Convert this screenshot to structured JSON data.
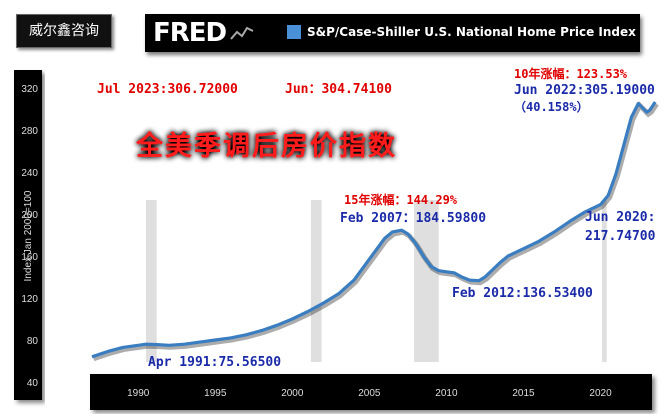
{
  "brand": {
    "name": "威尔鑫咨询"
  },
  "fred": {
    "logo": "FRED",
    "series_title": "S&P/Case-Shiller U.S. National Home Price Index"
  },
  "colors": {
    "line": "#3a7ec1",
    "annot_red": "#e00000",
    "annot_blue": "#1a2aa8",
    "recession": "#d9d9d9",
    "headline": "#ff1a1a"
  },
  "headline": "全美季调后房价指数",
  "annotations": {
    "top_latest": "Jul 2023:306.72000",
    "top_prev": "Jun：304.74100",
    "rise15": "15年涨幅：144.29%",
    "feb2007": "Feb 2007：184.59800",
    "rise10": "10年涨幅：123.53%",
    "jun2022": "Jun 2022:305.19000",
    "pct2022": "（40.158%）",
    "jun2020_a": "Jun 2020:",
    "jun2020_b": "217.74700",
    "feb2012": "Feb 2012:136.53400",
    "apr1991": "Apr 1991:75.56500"
  },
  "chart_data": {
    "type": "line",
    "ylabel": "Index Jan 2000=100",
    "xlabel": "",
    "ylim": [
      40,
      320
    ],
    "xlim": [
      1987.0,
      2023.6
    ],
    "y_ticks": [
      "40",
      "80",
      "120",
      "160",
      "200",
      "240",
      "280",
      "320"
    ],
    "x_ticks": [
      "1990",
      "1995",
      "2000",
      "2005",
      "2010",
      "2015",
      "2020"
    ],
    "recessions": [
      [
        1990.5,
        1991.2
      ],
      [
        2001.2,
        2001.9
      ],
      [
        2007.9,
        2009.5
      ],
      [
        2020.1,
        2020.4
      ]
    ],
    "series": [
      {
        "x": [
          1987.0,
          1988.0,
          1989.0,
          1990.0,
          1990.5,
          1991.25,
          1992.0,
          1993.0,
          1994.0,
          1995.0,
          1996.0,
          1997.0,
          1998.0,
          1999.0,
          2000.0,
          2001.0,
          2002.0,
          2003.0,
          2004.0,
          2005.0,
          2006.0,
          2006.5,
          2007.1,
          2007.5,
          2008.0,
          2008.5,
          2009.0,
          2009.5,
          2010.0,
          2010.5,
          2011.0,
          2011.5,
          2012.1,
          2012.5,
          2013.0,
          2013.5,
          2014.0,
          2015.0,
          2016.0,
          2017.0,
          2018.0,
          2019.0,
          2020.0,
          2020.5,
          2021.0,
          2021.5,
          2022.0,
          2022.45,
          2022.8,
          2023.0,
          2023.2,
          2023.55
        ],
        "y": [
          64,
          69,
          73,
          75,
          76,
          75.6,
          75,
          76,
          78,
          80,
          82,
          85,
          89,
          94,
          100,
          107,
          115,
          124,
          137,
          157,
          177,
          183,
          184.6,
          181,
          172,
          160,
          150,
          146,
          145,
          144,
          140,
          137,
          136.5,
          140,
          147,
          154,
          160,
          167,
          174,
          183,
          193,
          202,
          209,
          217.7,
          238,
          265,
          292,
          305.2,
          300,
          297,
          299,
          306.7
        ]
      }
    ]
  }
}
